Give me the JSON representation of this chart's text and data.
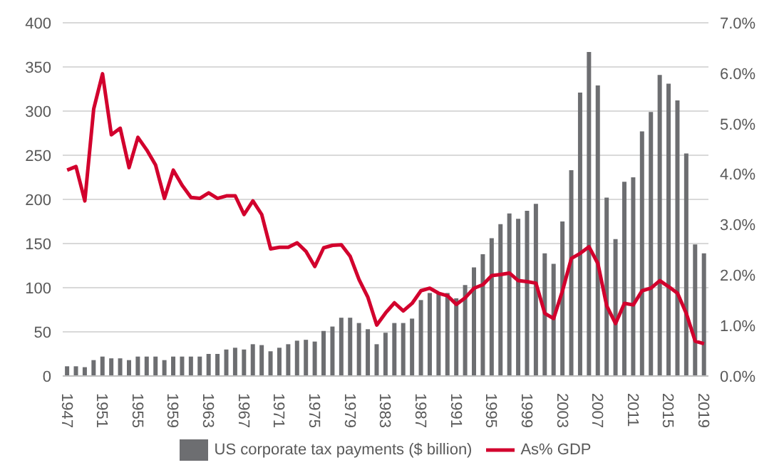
{
  "chart_data": {
    "type": "bar",
    "categories": [
      "1947",
      null,
      null,
      null,
      "1951",
      null,
      null,
      null,
      "1955",
      null,
      null,
      null,
      "1959",
      null,
      null,
      null,
      "1963",
      null,
      null,
      null,
      "1967",
      null,
      null,
      null,
      "1971",
      null,
      null,
      null,
      "1975",
      null,
      null,
      null,
      "1979",
      null,
      null,
      null,
      "1983",
      null,
      null,
      null,
      "1987",
      null,
      null,
      null,
      "1991",
      null,
      null,
      null,
      "1995",
      null,
      null,
      null,
      "1999",
      null,
      null,
      null,
      "2003",
      null,
      null,
      null,
      "2007",
      null,
      null,
      null,
      "2011",
      null,
      null,
      null,
      "2015",
      null,
      null,
      null,
      "2019"
    ],
    "series": [
      {
        "name": "US corporate tax payments ($ billion)",
        "color": "#6d6e71",
        "values": [
          11,
          11,
          10,
          18,
          22,
          20,
          20,
          18,
          22,
          22,
          22,
          18,
          22,
          22,
          22,
          22,
          25,
          25,
          30,
          32,
          30,
          36,
          35,
          28,
          32,
          36,
          40,
          41,
          39,
          51,
          56,
          66,
          66,
          60,
          53,
          36,
          49,
          60,
          60,
          65,
          86,
          94,
          94,
          94,
          88,
          103,
          123,
          138,
          156,
          172,
          184,
          178,
          187,
          195,
          139,
          127,
          175,
          233,
          321,
          367,
          329,
          202,
          155,
          220,
          225,
          277,
          299,
          341,
          331,
          312,
          252,
          149,
          139
        ]
      },
      {
        "name": "As% GDP",
        "type": "line",
        "axis": "y2",
        "color": "#d2002d",
        "values": [
          4.08,
          4.15,
          3.47,
          5.29,
          5.99,
          4.78,
          4.91,
          4.13,
          4.73,
          4.48,
          4.18,
          3.52,
          4.08,
          3.78,
          3.54,
          3.52,
          3.63,
          3.52,
          3.57,
          3.57,
          3.2,
          3.47,
          3.2,
          2.52,
          2.55,
          2.55,
          2.64,
          2.47,
          2.17,
          2.54,
          2.59,
          2.6,
          2.37,
          1.91,
          1.56,
          1.01,
          1.25,
          1.45,
          1.29,
          1.44,
          1.69,
          1.74,
          1.64,
          1.59,
          1.42,
          1.55,
          1.74,
          1.81,
          1.99,
          2.01,
          2.04,
          1.89,
          1.87,
          1.84,
          1.24,
          1.14,
          1.69,
          2.33,
          2.43,
          2.56,
          2.23,
          1.39,
          1.04,
          1.44,
          1.41,
          1.69,
          1.74,
          1.89,
          1.77,
          1.64,
          1.24,
          0.69,
          0.64
        ]
      }
    ],
    "ylim": [
      0,
      400
    ],
    "yticks": [
      0,
      50,
      100,
      150,
      200,
      250,
      300,
      350,
      400
    ],
    "y2lim": [
      0,
      7
    ],
    "y2ticks": [
      {
        "value": 0,
        "label": "0.0%"
      },
      {
        "value": 1,
        "label": "1.0%"
      },
      {
        "value": 2,
        "label": "2.0%"
      },
      {
        "value": 3,
        "label": "3.0%"
      },
      {
        "value": 4,
        "label": "4.0%"
      },
      {
        "value": 5,
        "label": "5.0%"
      },
      {
        "value": 6,
        "label": "6.0%"
      },
      {
        "value": 7,
        "label": "7.0%"
      }
    ],
    "grid": "y",
    "legend": "bottom",
    "marker": "none",
    "line_style": "solid"
  }
}
